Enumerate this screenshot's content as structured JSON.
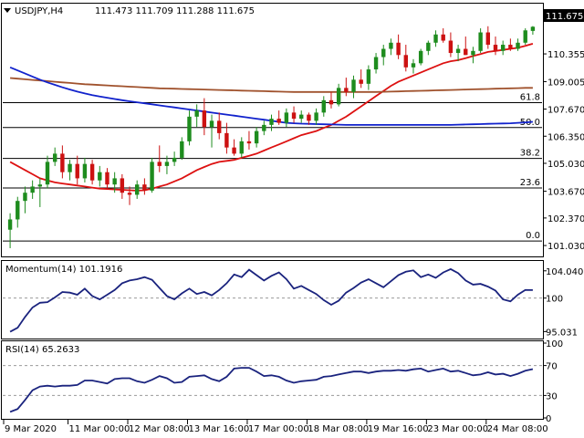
{
  "header": {
    "symbol_tf": "USDJPY,H4",
    "ohlc": "111.473 111.709 111.288 111.675"
  },
  "price_badge": "111.675",
  "chart_data": [
    {
      "type": "candlestick",
      "panel": "price",
      "ylim": [
        100.5,
        112.8
      ],
      "y_ticks": [
        "111.675",
        "110.355",
        "109.005",
        "107.670",
        "106.350",
        "105.030",
        "103.670",
        "102.370",
        "101.030"
      ],
      "y_tick_values": [
        111.675,
        110.355,
        109.005,
        107.67,
        106.35,
        105.03,
        103.67,
        102.37,
        101.03
      ],
      "x_labels": [
        "9 Mar 2020",
        "11 Mar 00:00",
        "12 Mar 08:00",
        "13 Mar 16:00",
        "17 Mar 00:00",
        "18 Mar 08:00",
        "19 Mar 16:00",
        "23 Mar 00:00",
        "24 Mar 08:00"
      ],
      "fibonacci": [
        {
          "label": "61.8",
          "price": 107.98
        },
        {
          "label": "50.0",
          "price": 106.77
        },
        {
          "label": "38.2",
          "price": 105.27
        },
        {
          "label": "23.6",
          "price": 103.83
        },
        {
          "label": "0.0",
          "price": 101.25
        }
      ],
      "candles": [
        {
          "o": 101.8,
          "h": 102.6,
          "l": 100.9,
          "c": 102.3
        },
        {
          "o": 102.3,
          "h": 103.4,
          "l": 101.9,
          "c": 103.2
        },
        {
          "o": 103.2,
          "h": 103.9,
          "l": 102.6,
          "c": 103.6
        },
        {
          "o": 103.6,
          "h": 104.2,
          "l": 103.3,
          "c": 103.9
        },
        {
          "o": 103.9,
          "h": 104.3,
          "l": 102.9,
          "c": 104.0
        },
        {
          "o": 104.0,
          "h": 105.4,
          "l": 103.8,
          "c": 105.1
        },
        {
          "o": 105.1,
          "h": 105.8,
          "l": 104.9,
          "c": 105.5
        },
        {
          "o": 105.5,
          "h": 105.9,
          "l": 104.3,
          "c": 104.6
        },
        {
          "o": 104.6,
          "h": 105.2,
          "l": 104.2,
          "c": 105.0
        },
        {
          "o": 105.0,
          "h": 105.4,
          "l": 104.0,
          "c": 104.3
        },
        {
          "o": 104.3,
          "h": 105.3,
          "l": 104.1,
          "c": 105.0
        },
        {
          "o": 105.0,
          "h": 105.2,
          "l": 104.0,
          "c": 104.2
        },
        {
          "o": 104.2,
          "h": 104.9,
          "l": 103.9,
          "c": 104.6
        },
        {
          "o": 104.6,
          "h": 104.8,
          "l": 103.8,
          "c": 104.0
        },
        {
          "o": 104.0,
          "h": 104.6,
          "l": 103.6,
          "c": 104.3
        },
        {
          "o": 104.3,
          "h": 104.5,
          "l": 103.3,
          "c": 103.6
        },
        {
          "o": 103.6,
          "h": 103.9,
          "l": 103.0,
          "c": 103.5
        },
        {
          "o": 103.5,
          "h": 104.2,
          "l": 103.3,
          "c": 104.0
        },
        {
          "o": 104.0,
          "h": 104.3,
          "l": 103.5,
          "c": 103.7
        },
        {
          "o": 103.7,
          "h": 105.3,
          "l": 103.6,
          "c": 105.1
        },
        {
          "o": 105.1,
          "h": 105.9,
          "l": 104.6,
          "c": 104.9
        },
        {
          "o": 104.9,
          "h": 105.4,
          "l": 104.5,
          "c": 105.1
        },
        {
          "o": 105.1,
          "h": 105.6,
          "l": 104.9,
          "c": 105.3
        },
        {
          "o": 105.3,
          "h": 106.3,
          "l": 105.2,
          "c": 106.1
        },
        {
          "o": 106.1,
          "h": 107.6,
          "l": 105.9,
          "c": 107.3
        },
        {
          "o": 107.3,
          "h": 107.9,
          "l": 106.8,
          "c": 107.6
        },
        {
          "o": 107.6,
          "h": 108.2,
          "l": 106.4,
          "c": 106.8
        },
        {
          "o": 106.8,
          "h": 107.4,
          "l": 105.8,
          "c": 107.1
        },
        {
          "o": 107.1,
          "h": 107.5,
          "l": 106.2,
          "c": 106.5
        },
        {
          "o": 106.5,
          "h": 107.0,
          "l": 105.5,
          "c": 105.8
        },
        {
          "o": 105.8,
          "h": 106.2,
          "l": 105.4,
          "c": 105.5
        },
        {
          "o": 105.5,
          "h": 106.3,
          "l": 105.3,
          "c": 106.1
        },
        {
          "o": 106.1,
          "h": 106.6,
          "l": 105.7,
          "c": 106.0
        },
        {
          "o": 106.0,
          "h": 106.8,
          "l": 105.8,
          "c": 106.6
        },
        {
          "o": 106.6,
          "h": 107.1,
          "l": 106.4,
          "c": 106.9
        },
        {
          "o": 106.9,
          "h": 107.4,
          "l": 106.6,
          "c": 107.2
        },
        {
          "o": 107.2,
          "h": 107.6,
          "l": 106.9,
          "c": 107.0
        },
        {
          "o": 107.0,
          "h": 107.7,
          "l": 106.8,
          "c": 107.5
        },
        {
          "o": 107.5,
          "h": 107.8,
          "l": 107.0,
          "c": 107.2
        },
        {
          "o": 107.2,
          "h": 107.6,
          "l": 107.0,
          "c": 107.4
        },
        {
          "o": 107.4,
          "h": 107.5,
          "l": 106.9,
          "c": 107.1
        },
        {
          "o": 107.1,
          "h": 107.7,
          "l": 106.9,
          "c": 107.5
        },
        {
          "o": 107.5,
          "h": 108.3,
          "l": 107.3,
          "c": 108.1
        },
        {
          "o": 108.1,
          "h": 108.5,
          "l": 107.7,
          "c": 107.9
        },
        {
          "o": 107.9,
          "h": 108.9,
          "l": 107.8,
          "c": 108.7
        },
        {
          "o": 108.7,
          "h": 109.2,
          "l": 108.3,
          "c": 108.5
        },
        {
          "o": 108.5,
          "h": 109.3,
          "l": 108.2,
          "c": 109.1
        },
        {
          "o": 109.1,
          "h": 109.6,
          "l": 108.7,
          "c": 108.9
        },
        {
          "o": 108.9,
          "h": 109.8,
          "l": 108.6,
          "c": 109.6
        },
        {
          "o": 109.6,
          "h": 110.4,
          "l": 109.4,
          "c": 110.2
        },
        {
          "o": 110.2,
          "h": 110.8,
          "l": 109.8,
          "c": 110.6
        },
        {
          "o": 110.6,
          "h": 111.1,
          "l": 110.3,
          "c": 110.9
        },
        {
          "o": 110.9,
          "h": 111.3,
          "l": 110.1,
          "c": 110.3
        },
        {
          "o": 110.3,
          "h": 110.8,
          "l": 109.5,
          "c": 109.7
        },
        {
          "o": 109.7,
          "h": 110.1,
          "l": 109.4,
          "c": 109.9
        },
        {
          "o": 109.9,
          "h": 110.6,
          "l": 109.8,
          "c": 110.5
        },
        {
          "o": 110.5,
          "h": 111.0,
          "l": 110.3,
          "c": 110.9
        },
        {
          "o": 110.9,
          "h": 111.5,
          "l": 110.7,
          "c": 111.3
        },
        {
          "o": 111.3,
          "h": 111.6,
          "l": 110.9,
          "c": 111.0
        },
        {
          "o": 111.0,
          "h": 111.4,
          "l": 110.2,
          "c": 110.4
        },
        {
          "o": 110.4,
          "h": 110.8,
          "l": 110.0,
          "c": 110.6
        },
        {
          "o": 110.6,
          "h": 111.2,
          "l": 110.3,
          "c": 110.3
        },
        {
          "o": 110.3,
          "h": 110.7,
          "l": 109.9,
          "c": 110.5
        },
        {
          "o": 110.5,
          "h": 111.6,
          "l": 110.4,
          "c": 111.4
        },
        {
          "o": 111.4,
          "h": 111.7,
          "l": 110.6,
          "c": 110.8
        },
        {
          "o": 110.8,
          "h": 111.2,
          "l": 110.3,
          "c": 110.5
        },
        {
          "o": 110.5,
          "h": 111.0,
          "l": 110.3,
          "c": 110.8
        },
        {
          "o": 110.8,
          "h": 111.1,
          "l": 110.5,
          "c": 110.6
        },
        {
          "o": 110.6,
          "h": 111.1,
          "l": 110.5,
          "c": 110.9
        },
        {
          "o": 110.9,
          "h": 111.6,
          "l": 110.8,
          "c": 111.5
        },
        {
          "o": 111.473,
          "h": 111.709,
          "l": 111.288,
          "c": 111.675
        }
      ],
      "moving_averages": [
        {
          "color": "#dd1111",
          "values": [
            105.1,
            104.9,
            104.7,
            104.5,
            104.3,
            104.2,
            104.1,
            104.05,
            104.0,
            103.95,
            103.9,
            103.85,
            103.8,
            103.78,
            103.76,
            103.74,
            103.72,
            103.7,
            103.72,
            103.8,
            103.9,
            104.0,
            104.15,
            104.3,
            104.5,
            104.7,
            104.85,
            105.0,
            105.1,
            105.15,
            105.2,
            105.3,
            105.4,
            105.5,
            105.65,
            105.8,
            105.95,
            106.1,
            106.25,
            106.4,
            106.5,
            106.6,
            106.75,
            106.9,
            107.1,
            107.3,
            107.55,
            107.8,
            108.05,
            108.3,
            108.55,
            108.8,
            109.0,
            109.15,
            109.3,
            109.45,
            109.6,
            109.75,
            109.9,
            110.0,
            110.05,
            110.15,
            110.25,
            110.35,
            110.45,
            110.5,
            110.55,
            110.6,
            110.65,
            110.75,
            110.85
          ]
        },
        {
          "color": "#a0522d",
          "values": [
            109.18,
            109.15,
            109.12,
            109.09,
            109.06,
            109.03,
            109.0,
            108.97,
            108.94,
            108.91,
            108.88,
            108.86,
            108.84,
            108.82,
            108.8,
            108.78,
            108.76,
            108.74,
            108.72,
            108.7,
            108.68,
            108.67,
            108.66,
            108.65,
            108.64,
            108.63,
            108.62,
            108.61,
            108.6,
            108.59,
            108.58,
            108.57,
            108.56,
            108.55,
            108.54,
            108.53,
            108.52,
            108.51,
            108.5,
            108.5,
            108.5,
            108.5,
            108.5,
            108.5,
            108.5,
            108.5,
            108.5,
            108.5,
            108.5,
            108.5,
            108.51,
            108.52,
            108.53,
            108.54,
            108.55,
            108.56,
            108.57,
            108.58,
            108.59,
            108.6,
            108.61,
            108.62,
            108.63,
            108.64,
            108.65,
            108.66,
            108.67,
            108.68,
            108.69,
            108.7,
            108.7
          ]
        },
        {
          "color": "#1122cc",
          "values": [
            109.7,
            109.55,
            109.4,
            109.25,
            109.1,
            108.97,
            108.85,
            108.73,
            108.62,
            108.52,
            108.43,
            108.35,
            108.28,
            108.22,
            108.16,
            108.1,
            108.05,
            108.0,
            107.95,
            107.9,
            107.85,
            107.8,
            107.75,
            107.7,
            107.65,
            107.6,
            107.55,
            107.5,
            107.45,
            107.4,
            107.35,
            107.3,
            107.25,
            107.2,
            107.15,
            107.1,
            107.05,
            107.0,
            106.98,
            106.96,
            106.95,
            106.94,
            106.93,
            106.92,
            106.91,
            106.9,
            106.9,
            106.9,
            106.9,
            106.9,
            106.9,
            106.9,
            106.9,
            106.9,
            106.9,
            106.9,
            106.9,
            106.9,
            106.9,
            106.9,
            106.91,
            106.92,
            106.93,
            106.94,
            106.95,
            106.96,
            106.97,
            106.98,
            107.0,
            107.02,
            107.05
          ]
        }
      ]
    },
    {
      "type": "line",
      "panel": "momentum",
      "title": "Momentum(14) 101.1916",
      "ylim": [
        94.0,
        105.5
      ],
      "y_ticks": [
        "104.0403",
        "100",
        "95.031"
      ],
      "y_tick_values": [
        104.0403,
        100,
        95.031
      ],
      "reference": 100,
      "series": [
        {
          "color": "#1a237e",
          "values": [
            95.0,
            95.6,
            97.2,
            98.6,
            99.3,
            99.4,
            100.1,
            100.9,
            100.8,
            100.5,
            101.4,
            100.3,
            99.8,
            100.5,
            101.2,
            102.2,
            102.6,
            102.8,
            103.1,
            102.7,
            101.5,
            100.3,
            99.8,
            100.7,
            101.4,
            100.6,
            100.9,
            100.4,
            101.2,
            102.2,
            103.5,
            103.1,
            104.2,
            103.4,
            102.6,
            103.3,
            103.8,
            102.8,
            101.4,
            101.8,
            101.2,
            100.6,
            99.7,
            99.0,
            99.6,
            100.8,
            101.5,
            102.3,
            102.8,
            102.2,
            101.6,
            102.5,
            103.4,
            103.9,
            104.1,
            103.1,
            103.5,
            103.0,
            103.8,
            104.3,
            103.7,
            102.6,
            102.0,
            102.1,
            101.7,
            101.1,
            99.8,
            99.5,
            100.5,
            101.2,
            101.19
          ]
        }
      ]
    },
    {
      "type": "line",
      "panel": "rsi",
      "title": "RSI(14) 65.2633",
      "ylim": [
        0,
        100
      ],
      "y_ticks": [
        "100",
        "70",
        "30",
        "0"
      ],
      "y_tick_values": [
        100,
        70,
        30,
        0
      ],
      "levels": [
        70,
        30
      ],
      "series": [
        {
          "color": "#1a237e",
          "values": [
            8,
            12,
            24,
            37,
            42,
            43,
            42,
            43,
            43,
            44,
            50,
            50,
            48,
            46,
            52,
            53,
            53,
            49,
            47,
            51,
            56,
            53,
            47,
            48,
            55,
            56,
            57,
            52,
            49,
            55,
            66,
            67,
            67,
            62,
            56,
            57,
            55,
            50,
            47,
            49,
            50,
            51,
            55,
            56,
            58,
            60,
            62,
            62,
            60,
            62,
            63,
            63,
            64,
            63,
            65,
            66,
            62,
            64,
            66,
            62,
            63,
            60,
            57,
            58,
            61,
            58,
            59,
            56,
            59,
            63,
            65.26
          ]
        }
      ]
    }
  ]
}
